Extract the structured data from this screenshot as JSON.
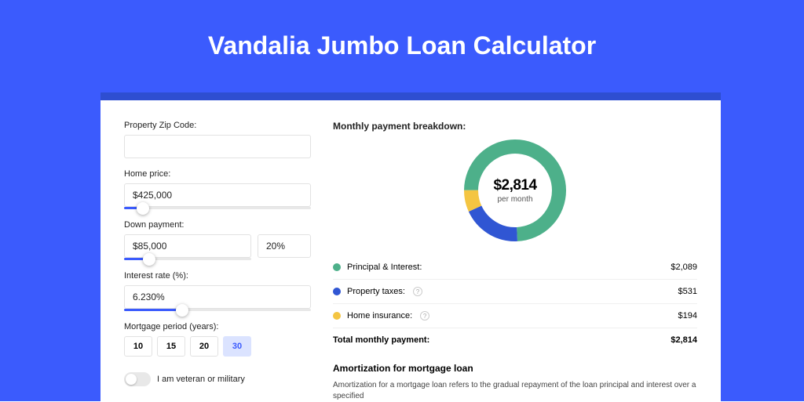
{
  "page": {
    "background_color": "#3b5bfd",
    "title": "Vandalia Jumbo Loan Calculator",
    "title_color": "#ffffff"
  },
  "card": {
    "background_color": "#ffffff",
    "shadow_color": "#2e4ed1"
  },
  "form": {
    "zip_label": "Property Zip Code:",
    "zip_value": "",
    "home_price_label": "Home price:",
    "home_price_value": "$425,000",
    "home_price_slider_pct": 10,
    "down_payment_label": "Down payment:",
    "down_payment_value": "$85,000",
    "down_payment_pct_value": "20%",
    "down_payment_slider_pct": 20,
    "interest_label": "Interest rate (%):",
    "interest_value": "6.230%",
    "interest_slider_pct": 31,
    "period_label": "Mortgage period (years):",
    "period_options": [
      "10",
      "15",
      "20",
      "30"
    ],
    "period_selected": "30",
    "veteran_label": "I am veteran or military"
  },
  "breakdown": {
    "title": "Monthly payment breakdown:",
    "total_amount": "$2,814",
    "per_month": "per month",
    "donut": {
      "type": "donut",
      "radius": 65,
      "stroke_width": 18,
      "slices": [
        {
          "label": "Principal & Interest",
          "value": 2089,
          "pct": 74.2,
          "color": "#4db08a"
        },
        {
          "label": "Property taxes",
          "value": 531,
          "pct": 18.9,
          "color": "#3056d3"
        },
        {
          "label": "Home insurance",
          "value": 194,
          "pct": 6.9,
          "color": "#f4c542"
        }
      ]
    },
    "items": [
      {
        "label": "Principal & Interest:",
        "value": "$2,089",
        "color": "#4db08a",
        "info": false
      },
      {
        "label": "Property taxes:",
        "value": "$531",
        "color": "#3056d3",
        "info": true
      },
      {
        "label": "Home insurance:",
        "value": "$194",
        "color": "#f4c542",
        "info": true
      }
    ],
    "total_label": "Total monthly payment:",
    "total_value": "$2,814"
  },
  "amortization": {
    "title": "Amortization for mortgage loan",
    "text": "Amortization for a mortgage loan refers to the gradual repayment of the loan principal and interest over a specified"
  }
}
